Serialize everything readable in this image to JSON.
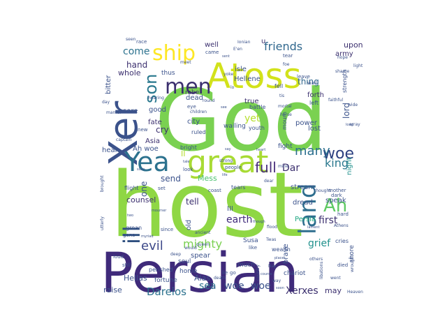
{
  "wordcloud": {
    "words": [
      {
        "text": "host",
        "color": "#8fd744",
        "rotate": 0
      },
      {
        "text": "God",
        "color": "#7ad151",
        "rotate": 0
      },
      {
        "text": "Persian",
        "color": "#3f2a7a",
        "rotate": 0
      },
      {
        "text": "Xer",
        "color": "#3b528b",
        "rotate": -90
      },
      {
        "text": "Atoss",
        "color": "#d2e21b",
        "rotate": 0
      },
      {
        "text": "great",
        "color": "#a8db34",
        "rotate": 0
      },
      {
        "text": "Yea",
        "color": "#2c728e",
        "rotate": 0
      },
      {
        "text": "men",
        "color": "#3b2f6e",
        "rotate": 0
      },
      {
        "text": "ship",
        "color": "#fde725",
        "rotate": 0
      },
      {
        "text": "son",
        "color": "#2a788e",
        "rotate": -90
      },
      {
        "text": "land",
        "color": "#2e6e8e",
        "rotate": -90
      },
      {
        "text": "ill",
        "color": "#2e4f7f",
        "rotate": -90
      },
      {
        "text": "Ah",
        "color": "#5ec962",
        "rotate": 0
      },
      {
        "text": "woe",
        "color": "#2b3f7f",
        "rotate": 0
      },
      {
        "text": "king",
        "color": "#2a788e",
        "rotate": 0
      },
      {
        "text": "many",
        "color": "#2b6f8e",
        "rotate": 0
      },
      {
        "text": "full",
        "color": "#472d7b",
        "rotate": 0
      },
      {
        "text": "mighty",
        "color": "#7ad151",
        "rotate": 0
      },
      {
        "text": "evil",
        "color": "#3e4989",
        "rotate": 0
      },
      {
        "text": "friends",
        "color": "#31688e",
        "rotate": 0
      },
      {
        "text": "come",
        "color": "#2c728e",
        "rotate": 0
      },
      {
        "text": "Dareios",
        "color": "#2c728e",
        "rotate": 0
      },
      {
        "text": "Xerxes",
        "color": "#3b2f6e",
        "rotate": 0
      },
      {
        "text": "woe",
        "color": "#3b528b",
        "rotate": 0
      },
      {
        "text": "woe",
        "color": "#3b528b",
        "rotate": 0
      },
      {
        "text": "sea",
        "color": "#2c728e",
        "rotate": 0
      },
      {
        "text": "grief",
        "color": "#21918c",
        "rotate": 0
      },
      {
        "text": "earth",
        "color": "#3f2a7a",
        "rotate": 0
      },
      {
        "text": "first",
        "color": "#3b2f6e",
        "rotate": 0
      },
      {
        "text": "Dar",
        "color": "#3b2f6e",
        "rotate": 0
      },
      {
        "text": "yet",
        "color": "#b5de2b",
        "rotate": 0
      },
      {
        "text": "hand",
        "color": "#3b2f6e",
        "rotate": 0
      },
      {
        "text": "thing",
        "color": "#31688e",
        "rotate": 0
      },
      {
        "text": "upon",
        "color": "#3b2f6e",
        "rotate": 0
      },
      {
        "text": "one",
        "color": "#3b528b",
        "rotate": -90
      },
      {
        "text": "tell",
        "color": "#3b2f6e",
        "rotate": 0
      },
      {
        "text": "lord",
        "color": "#3b528b",
        "rotate": -90
      },
      {
        "text": "night",
        "color": "#21918c",
        "rotate": -90
      },
      {
        "text": "Mess",
        "color": "#4ac16d",
        "rotate": 0
      },
      {
        "text": "Persia",
        "color": "#22a884",
        "rotate": 0
      },
      {
        "text": "may",
        "color": "#3b2f6e",
        "rotate": 0
      },
      {
        "text": "Alas",
        "color": "#3b528b",
        "rotate": 0
      },
      {
        "text": "Hellas",
        "color": "#3b528b",
        "rotate": 0
      },
      {
        "text": "raise",
        "color": "#3b528b",
        "rotate": 0
      },
      {
        "text": "cry",
        "color": "#3b2f6e",
        "rotate": 0
      },
      {
        "text": "send",
        "color": "#3b528b",
        "rotate": 0
      },
      {
        "text": "counsel",
        "color": "#3b2f6e",
        "rotate": 0
      },
      {
        "text": "whole",
        "color": "#3b2f6e",
        "rotate": 0
      },
      {
        "text": "city",
        "color": "#3b528b",
        "rotate": 0
      },
      {
        "text": "fate",
        "color": "#3b2f6e",
        "rotate": 0
      },
      {
        "text": "Asia",
        "color": "#3b2f6e",
        "rotate": 0
      },
      {
        "text": "power",
        "color": "#3b528b",
        "rotate": 0
      },
      {
        "text": "forth",
        "color": "#3b2f6e",
        "rotate": 0
      },
      {
        "text": "lost",
        "color": "#3b528b",
        "rotate": 0
      },
      {
        "text": "army",
        "color": "#3b2f6e",
        "rotate": 0
      },
      {
        "text": "well",
        "color": "#3b2f6e",
        "rotate": 0
      },
      {
        "text": "isle",
        "color": "#3b528b",
        "rotate": 0
      },
      {
        "text": "Hellene",
        "color": "#3b528b",
        "rotate": 0
      },
      {
        "text": "true",
        "color": "#3b2f6e",
        "rotate": 0
      },
      {
        "text": "dead",
        "color": "#3b528b",
        "rotate": 0
      },
      {
        "text": "robe",
        "color": "#3b2f6e",
        "rotate": 0
      },
      {
        "text": "thus",
        "color": "#3b528b",
        "rotate": 0
      },
      {
        "text": "good",
        "color": "#3b528b",
        "rotate": 0
      },
      {
        "text": "sore",
        "color": "#3b528b",
        "rotate": 0
      },
      {
        "text": "bitter",
        "color": "#3b528b",
        "rotate": -90
      },
      {
        "text": "hear",
        "color": "#3b528b",
        "rotate": 0
      },
      {
        "text": "stream",
        "color": "#3b528b",
        "rotate": 0
      },
      {
        "text": "dread",
        "color": "#3b528b",
        "rotate": 0
      },
      {
        "text": "speak",
        "color": "#3b528b",
        "rotate": 0
      },
      {
        "text": "spear",
        "color": "#3b528b",
        "rotate": 0
      },
      {
        "text": "III",
        "color": "#3b528b",
        "rotate": 0
      },
      {
        "text": "brave",
        "color": "#3b528b",
        "rotate": -90
      },
      {
        "text": "Susa",
        "color": "#3b528b",
        "rotate": 0
      },
      {
        "text": "chariot",
        "color": "#3b528b",
        "rotate": 0
      },
      {
        "text": "shore",
        "color": "#3b528b",
        "rotate": -90
      },
      {
        "text": "much",
        "color": "#3b528b",
        "rotate": 0
      },
      {
        "text": "home",
        "color": "#3b528b",
        "rotate": 0
      },
      {
        "text": "soul",
        "color": "#3b528b",
        "rotate": 0
      },
      {
        "text": "fortune",
        "color": "#3b528b",
        "rotate": 0
      },
      {
        "text": "perished",
        "color": "#3b528b",
        "rotate": 0
      },
      {
        "text": "wailing",
        "color": "#3b528b",
        "rotate": 0
      },
      {
        "text": "fight",
        "color": "#3b528b",
        "rotate": 0
      },
      {
        "text": "fell",
        "color": "#3b528b",
        "rotate": 0
      },
      {
        "text": "left",
        "color": "#3b528b",
        "rotate": 0
      },
      {
        "text": "mourn",
        "color": "#3b528b",
        "rotate": -90
      },
      {
        "text": "battle",
        "color": "#3b528b",
        "rotate": 0
      },
      {
        "text": "Ah woe",
        "color": "#3b528b",
        "rotate": 0
      },
      {
        "text": "old",
        "color": "#3b528b",
        "rotate": -90
      },
      {
        "text": "wealth",
        "color": "#3b528b",
        "rotate": 0
      },
      {
        "text": "cries",
        "color": "#3b528b",
        "rotate": 0
      },
      {
        "text": "flight",
        "color": "#3b528b",
        "rotate": 0
      },
      {
        "text": "groan",
        "color": "#3b528b",
        "rotate": 0
      },
      {
        "text": "ruled",
        "color": "#3b528b",
        "rotate": 0
      },
      {
        "text": "youth",
        "color": "#3b528b",
        "rotate": 0
      },
      {
        "text": "bright",
        "color": "#3b528b",
        "rotate": 0
      },
      {
        "text": "II",
        "color": "#b5de2b",
        "rotate": 0
      },
      {
        "text": "strength",
        "color": "#3b528b",
        "rotate": -90
      },
      {
        "text": "coast",
        "color": "#3b528b",
        "rotate": 0
      },
      {
        "text": "mother",
        "color": "#3b528b",
        "rotate": 0
      },
      {
        "text": "dark",
        "color": "#3b528b",
        "rotate": 0
      },
      {
        "text": "hard",
        "color": "#3b528b",
        "rotate": 0
      },
      {
        "text": "leave",
        "color": "#3b528b",
        "rotate": 0
      },
      {
        "text": "wail",
        "color": "#3b528b",
        "rotate": 0
      },
      {
        "text": "tear",
        "color": "#3b528b",
        "rotate": 0
      },
      {
        "text": "tears",
        "color": "#3b528b",
        "rotate": 0
      },
      {
        "text": "race",
        "color": "#3b528b",
        "rotate": 0
      },
      {
        "text": "came",
        "color": "#3b528b",
        "rotate": 0
      },
      {
        "text": "eye",
        "color": "#3b528b",
        "rotate": 0
      },
      {
        "text": "knew",
        "color": "#3b528b",
        "rotate": 0
      },
      {
        "text": "set",
        "color": "#3b528b",
        "rotate": 0
      },
      {
        "text": "look",
        "color": "#3b528b",
        "rotate": 0
      },
      {
        "text": "people",
        "color": "#3b528b",
        "rotate": 0
      },
      {
        "text": "like",
        "color": "#3b528b",
        "rotate": 0
      },
      {
        "text": "died",
        "color": "#3b528b",
        "rotate": 0
      },
      {
        "text": "since",
        "color": "#3b528b",
        "rotate": 0
      },
      {
        "text": "gone",
        "color": "#3b528b",
        "rotate": 0
      },
      {
        "text": "loud",
        "color": "#3b528b",
        "rotate": 0
      },
      {
        "text": "still",
        "color": "#3b528b",
        "rotate": 0
      },
      {
        "text": "faithful",
        "color": "#3b528b",
        "rotate": 0
      },
      {
        "text": "shame",
        "color": "#3b528b",
        "rotate": 0
      },
      {
        "text": "Ionian",
        "color": "#3b528b",
        "rotate": 0
      },
      {
        "text": "day",
        "color": "#3b528b",
        "rotate": 0
      },
      {
        "text": "seen",
        "color": "#3b528b",
        "rotate": 0
      },
      {
        "text": "hope",
        "color": "#3b528b",
        "rotate": 0
      },
      {
        "text": "dear",
        "color": "#3b528b",
        "rotate": 0
      },
      {
        "text": "strong",
        "color": "#3b528b",
        "rotate": 0
      },
      {
        "text": "light",
        "color": "#3b528b",
        "rotate": 0
      },
      {
        "text": "Heaven",
        "color": "#3b528b",
        "rotate": 0
      },
      {
        "text": "deep",
        "color": "#3b528b",
        "rotate": 0
      },
      {
        "text": "went",
        "color": "#3b528b",
        "rotate": 0
      },
      {
        "text": "death",
        "color": "#3b528b",
        "rotate": 0
      },
      {
        "text": "way",
        "color": "#3b528b",
        "rotate": 0
      },
      {
        "text": "captain",
        "color": "#3b528b",
        "rotate": 0
      },
      {
        "text": "children",
        "color": "#3b528b",
        "rotate": 0
      },
      {
        "text": "horse",
        "color": "#3b528b",
        "rotate": 0
      },
      {
        "text": "mine",
        "color": "#3b528b",
        "rotate": 0
      },
      {
        "text": "ancient",
        "color": "#3b528b",
        "rotate": 0
      },
      {
        "text": "round",
        "color": "#3b528b",
        "rotate": 0
      },
      {
        "text": "wide",
        "color": "#3b528b",
        "rotate": 0
      },
      {
        "text": "others",
        "color": "#3b528b",
        "rotate": 0
      },
      {
        "text": "Nay",
        "color": "#3b528b",
        "rotate": 0
      },
      {
        "text": "Athens",
        "color": "#3b528b",
        "rotate": 0
      },
      {
        "text": "queen",
        "color": "#3b528b",
        "rotate": 0
      },
      {
        "text": "would",
        "color": "#3b528b",
        "rotate": 0
      },
      {
        "text": "brought",
        "color": "#3b528b",
        "rotate": -90
      },
      {
        "text": "utterly",
        "color": "#3b528b",
        "rotate": -90
      },
      {
        "text": "wrought",
        "color": "#3b528b",
        "rotate": -90
      },
      {
        "text": "libations",
        "color": "#3b528b",
        "rotate": -90
      },
      {
        "text": "country",
        "color": "#3b528b",
        "rotate": -90
      },
      {
        "text": "array",
        "color": "#3b528b",
        "rotate": 0
      },
      {
        "text": "marrior",
        "color": "#3b528b",
        "rotate": 0
      },
      {
        "text": "thought",
        "color": "#3b528b",
        "rotate": 0
      },
      {
        "text": "Twas",
        "color": "#3b528b",
        "rotate": 0
      },
      {
        "text": "lie",
        "color": "#3b528b",
        "rotate": 0
      },
      {
        "text": "go",
        "color": "#3b528b",
        "rotate": 0
      },
      {
        "text": "yoke",
        "color": "#3b528b",
        "rotate": 0
      },
      {
        "text": "foe",
        "color": "#3b528b",
        "rotate": 0
      },
      {
        "text": "lo",
        "color": "#3b528b",
        "rotate": 0
      },
      {
        "text": "tis",
        "color": "#3b528b",
        "rotate": 0
      },
      {
        "text": "E'en",
        "color": "#3b528b",
        "rotate": 0
      },
      {
        "text": "mortal",
        "color": "#3b528b",
        "rotate": 0
      },
      {
        "text": "meet",
        "color": "#3b528b",
        "rotate": 0
      },
      {
        "text": "hearing",
        "color": "#3b528b",
        "rotate": 0
      },
      {
        "text": "u",
        "color": "#3b2f6e",
        "rotate": 0
      },
      {
        "text": "sent",
        "color": "#3b528b",
        "rotate": 0
      },
      {
        "text": "flood",
        "color": "#3b528b",
        "rotate": 0
      },
      {
        "text": "though",
        "color": "#3b528b",
        "rotate": 0
      },
      {
        "text": "myriad",
        "color": "#3b528b",
        "rotate": 0
      },
      {
        "text": "mourner",
        "color": "#3b528b",
        "rotate": 0
      },
      {
        "text": "slow",
        "color": "#3b528b",
        "rotate": 0
      },
      {
        "text": "two",
        "color": "#3b528b",
        "rotate": 0
      },
      {
        "text": "life",
        "color": "#3b528b",
        "rotate": 0
      },
      {
        "text": "course",
        "color": "#3b528b",
        "rotate": 0
      },
      {
        "text": "straits",
        "color": "#3b528b",
        "rotate": 0
      },
      {
        "text": "soon",
        "color": "#3b528b",
        "rotate": 0
      },
      {
        "text": "long",
        "color": "#3b528b",
        "rotate": 0
      },
      {
        "text": "lament",
        "color": "#3b528b",
        "rotate": 0
      },
      {
        "text": "tale",
        "color": "#3b528b",
        "rotate": 0
      },
      {
        "text": "place",
        "color": "#3b528b",
        "rotate": 0
      },
      {
        "text": "heart",
        "color": "#3b528b",
        "rotate": 0
      },
      {
        "text": "say",
        "color": "#3b528b",
        "rotate": 0
      },
      {
        "text": "see",
        "color": "#3b528b",
        "rotate": 0
      }
    ]
  }
}
